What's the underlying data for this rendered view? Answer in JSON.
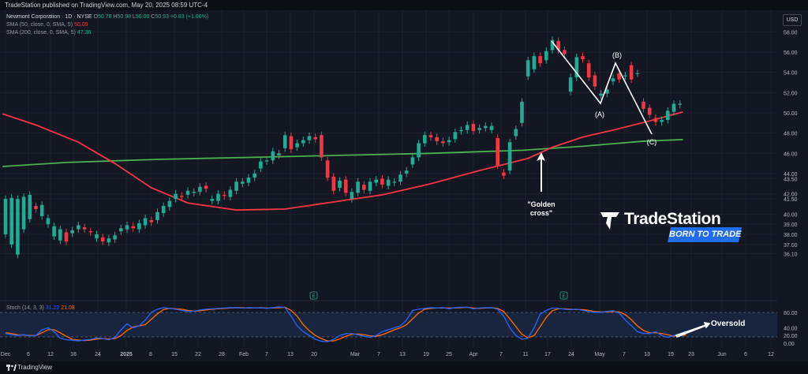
{
  "header": {
    "published": "TradeStation published on TradingView.com, May 20, 2025 08:59 UTC-4"
  },
  "legend": {
    "symbol": "Newmont Corporation · 1D · NYSE",
    "o_label": "O",
    "o_val": "50.78",
    "h_label": "H",
    "h_val": "50.98",
    "l_label": "L",
    "l_val": "50.00",
    "c_label": "C",
    "c_val": "50.93",
    "change": "+0.83 (+1.66%)",
    "sma50_label": "SMA (50, close, 0, SMA, 5)",
    "sma50_val": "50.09",
    "sma200_label": "SMA (200, close, 0, SMA, 5)",
    "sma200_val": "47.36"
  },
  "currency_button": "USD",
  "footer": {
    "brand": "TradingView"
  },
  "brand_overlay": {
    "name": "TradeStation",
    "tagline": "BORN TO TRADE"
  },
  "colors": {
    "up": "#22ab94",
    "down": "#f23645",
    "sma50": "#f23645",
    "sma200": "#4caf50",
    "stoch_k": "#2962ff",
    "stoch_d": "#ff6d00",
    "background": "#131722"
  },
  "chart_data": {
    "type": "candlestick",
    "title": "Newmont Corporation · 1D · NYSE",
    "y_ticks": [
      "58.00",
      "56.00",
      "54.00",
      "52.00",
      "50.00",
      "48.00",
      "46.00",
      "44.00",
      "43.50",
      "42.00",
      "41.50",
      "40.00",
      "39.00",
      "38.00",
      "37.00",
      "36.10"
    ],
    "x_ticks": [
      "Dec",
      "6",
      "12",
      "18",
      "24",
      "2025",
      "8",
      "15",
      "22",
      "28",
      "Feb",
      "7",
      "13",
      "20",
      "Mar",
      "7",
      "13",
      "19",
      "25",
      "Apr",
      "7",
      "11",
      "17",
      "24",
      "May",
      "7",
      "13",
      "19",
      "23",
      "Jun",
      "6",
      "12"
    ],
    "ylim": [
      35.8,
      59.2
    ],
    "annotations": [
      {
        "text": "\"Golden",
        "text2": "cross\""
      },
      {
        "text": "(A)"
      },
      {
        "text": "(B)"
      },
      {
        "text": "(C)"
      },
      {
        "text": "Oversold"
      }
    ],
    "event_markers": [
      "E",
      "E"
    ],
    "candles": [
      [
        38,
        41.5
      ],
      [
        37,
        41.6
      ],
      [
        36,
        41.5
      ],
      [
        38.5,
        41.7
      ],
      [
        39.5,
        41.9
      ],
      [
        40.8,
        40.5
      ],
      [
        39.8,
        40.9
      ],
      [
        39,
        39.6
      ],
      [
        37.8,
        38.8
      ],
      [
        37.4,
        38.5
      ],
      [
        38.2,
        37.3
      ],
      [
        38.1,
        38.4
      ],
      [
        38.5,
        38.9
      ],
      [
        38.7,
        38.5
      ],
      [
        38.3,
        38.2
      ],
      [
        37.6,
        38.0
      ],
      [
        37.7,
        37.3
      ],
      [
        37.2,
        37.6
      ],
      [
        37.5,
        37.9
      ],
      [
        38.3,
        38.6
      ],
      [
        38.5,
        38.9
      ],
      [
        38.8,
        38.6
      ],
      [
        38.5,
        39.1
      ],
      [
        38.9,
        39.6
      ],
      [
        39.4,
        39.2
      ],
      [
        39.4,
        40.2
      ],
      [
        40.1,
        40.8
      ],
      [
        40.7,
        41.3
      ],
      [
        41.5,
        42.0
      ],
      [
        41.8,
        41.7
      ],
      [
        41.9,
        42.3
      ],
      [
        42.1,
        42.2
      ],
      [
        42.2,
        42.7
      ],
      [
        42.8,
        42.5
      ],
      [
        41.3,
        41.5
      ],
      [
        41.3,
        42.0
      ],
      [
        41.9,
        41.8
      ],
      [
        41.7,
        42.4
      ],
      [
        42.3,
        43.2
      ],
      [
        43.0,
        43.2
      ],
      [
        43.1,
        43.6
      ],
      [
        43.6,
        44.0
      ],
      [
        44.5,
        45.2
      ],
      [
        45.2,
        45.3
      ],
      [
        45.3,
        46.2
      ],
      [
        45.8,
        46.0
      ],
      [
        46.5,
        47.8
      ],
      [
        47.7,
        46.4
      ],
      [
        46.6,
        47.0
      ],
      [
        47.0,
        47.3
      ],
      [
        47.3,
        47.7
      ],
      [
        47.6,
        47.4
      ],
      [
        47.8,
        45.6
      ],
      [
        45.3,
        43.6
      ],
      [
        43.7,
        42.3
      ],
      [
        42.6,
        43.3
      ],
      [
        43.4,
        42.1
      ],
      [
        41.5,
        42.2
      ],
      [
        42.1,
        43.2
      ],
      [
        42.9,
        42.4
      ],
      [
        42.3,
        43.2
      ],
      [
        43.1,
        43.4
      ],
      [
        43.5,
        42.9
      ],
      [
        42.8,
        43.4
      ],
      [
        43.1,
        43.2
      ],
      [
        43.2,
        43.9
      ],
      [
        44.0,
        44.3
      ],
      [
        44.9,
        45.6
      ],
      [
        45.6,
        47.0
      ],
      [
        47.0,
        47.8
      ],
      [
        47.8,
        47.6
      ],
      [
        47.6,
        47.2
      ],
      [
        47.2,
        47.0
      ],
      [
        47.1,
        47.3
      ],
      [
        47.4,
        48.1
      ],
      [
        48.2,
        48.3
      ],
      [
        48.3,
        48.8
      ],
      [
        48.9,
        48.2
      ],
      [
        48.3,
        48.5
      ],
      [
        48.5,
        48.7
      ],
      [
        48.3,
        48.7
      ],
      [
        47.5,
        44.8
      ],
      [
        44.1,
        43.8
      ],
      [
        44.3,
        47.1
      ],
      [
        47.7,
        48.4
      ],
      [
        49.0,
        51.1
      ],
      [
        53.6,
        55.2
      ],
      [
        54.3,
        55.6
      ],
      [
        55.6,
        54.9
      ],
      [
        55.2,
        56.1
      ],
      [
        56.2,
        57.2
      ],
      [
        57.1,
        56.2
      ],
      [
        56.2,
        55.8
      ],
      [
        52.1,
        53.5
      ],
      [
        53.5,
        55.5
      ],
      [
        55.6,
        55.3
      ],
      [
        54.9,
        53.5
      ],
      [
        53.7,
        52.6
      ],
      [
        51.7,
        51.9
      ],
      [
        51.9,
        52.3
      ],
      [
        53.1,
        53.4
      ],
      [
        53.9,
        53.3
      ],
      [
        53.6,
        53.7
      ],
      [
        54.7,
        53.3
      ],
      [
        53.9,
        53.9
      ],
      [
        51.1,
        50.4
      ],
      [
        50.5,
        49.8
      ],
      [
        49.5,
        49.1
      ],
      [
        49.1,
        49.3
      ],
      [
        49.3,
        50.2
      ],
      [
        50.1,
        50.9
      ],
      [
        50.8,
        50.9
      ]
    ],
    "sma50": [
      [
        -0.5,
        49.9
      ],
      [
        5,
        48.8
      ],
      [
        12,
        47.1
      ],
      [
        18,
        45.0
      ],
      [
        24,
        42.6
      ],
      [
        30,
        41.1
      ],
      [
        38,
        40.4
      ],
      [
        46,
        40.5
      ],
      [
        54,
        41.2
      ],
      [
        62,
        41.9
      ],
      [
        70,
        43.0
      ],
      [
        78,
        44.3
      ],
      [
        86,
        45.5
      ],
      [
        90,
        46.6
      ],
      [
        95,
        47.6
      ],
      [
        100,
        48.3
      ],
      [
        106,
        49.2
      ],
      [
        111.5,
        50.09
      ]
    ],
    "sma200": [
      [
        -0.5,
        44.7
      ],
      [
        10,
        45.1
      ],
      [
        25,
        45.4
      ],
      [
        40,
        45.6
      ],
      [
        55,
        45.8
      ],
      [
        70,
        46.0
      ],
      [
        85,
        46.3
      ],
      [
        95,
        46.7
      ],
      [
        105,
        47.2
      ],
      [
        111.5,
        47.36
      ]
    ],
    "stoch": {
      "title": "Stoch (14, 3, 3)",
      "k_val": "31.22",
      "d_val": "21.08",
      "ylim": [
        0,
        100
      ],
      "y_ticks": [
        "80.00",
        "40.00",
        "20.00",
        "0.00"
      ],
      "k": [
        25,
        22,
        20,
        22,
        19,
        20,
        35,
        40,
        30,
        13,
        9,
        8,
        6,
        8,
        10,
        14,
        12,
        9,
        15,
        35,
        50,
        40,
        45,
        60,
        80,
        88,
        92,
        90,
        88,
        85,
        82,
        83,
        86,
        88,
        89,
        90,
        91,
        92,
        92,
        91,
        92,
        91,
        92,
        90,
        92,
        94,
        92,
        70,
        45,
        30,
        20,
        10,
        5,
        4,
        10,
        20,
        25,
        25,
        22,
        18,
        15,
        20,
        30,
        35,
        40,
        45,
        60,
        85,
        88,
        90,
        92,
        91,
        92,
        89,
        92,
        93,
        93,
        89,
        91,
        92,
        92,
        88,
        70,
        40,
        20,
        10,
        13,
        40,
        75,
        85,
        91,
        90,
        88,
        87,
        88,
        85,
        82,
        80,
        80,
        82,
        84,
        78,
        60,
        45,
        30,
        25,
        25,
        30,
        20,
        15,
        20,
        25,
        31
      ],
      "d": [
        27,
        25,
        22,
        21,
        20,
        20,
        27,
        35,
        35,
        27,
        18,
        10,
        8,
        7,
        8,
        11,
        12,
        11,
        12,
        20,
        33,
        42,
        45,
        48,
        62,
        76,
        87,
        90,
        89,
        88,
        85,
        83,
        84,
        86,
        88,
        89,
        90,
        91,
        92,
        92,
        91,
        91,
        92,
        91,
        91,
        92,
        93,
        85,
        70,
        48,
        32,
        20,
        12,
        6,
        6,
        11,
        18,
        23,
        24,
        22,
        19,
        18,
        22,
        28,
        35,
        40,
        48,
        63,
        78,
        88,
        90,
        91,
        91,
        91,
        91,
        92,
        93,
        91,
        90,
        91,
        92,
        90,
        82,
        63,
        43,
        23,
        14,
        20,
        43,
        67,
        84,
        89,
        89,
        88,
        87,
        87,
        85,
        82,
        81,
        81,
        82,
        81,
        74,
        61,
        45,
        33,
        27,
        27,
        25,
        22,
        18,
        20,
        21
      ]
    }
  }
}
